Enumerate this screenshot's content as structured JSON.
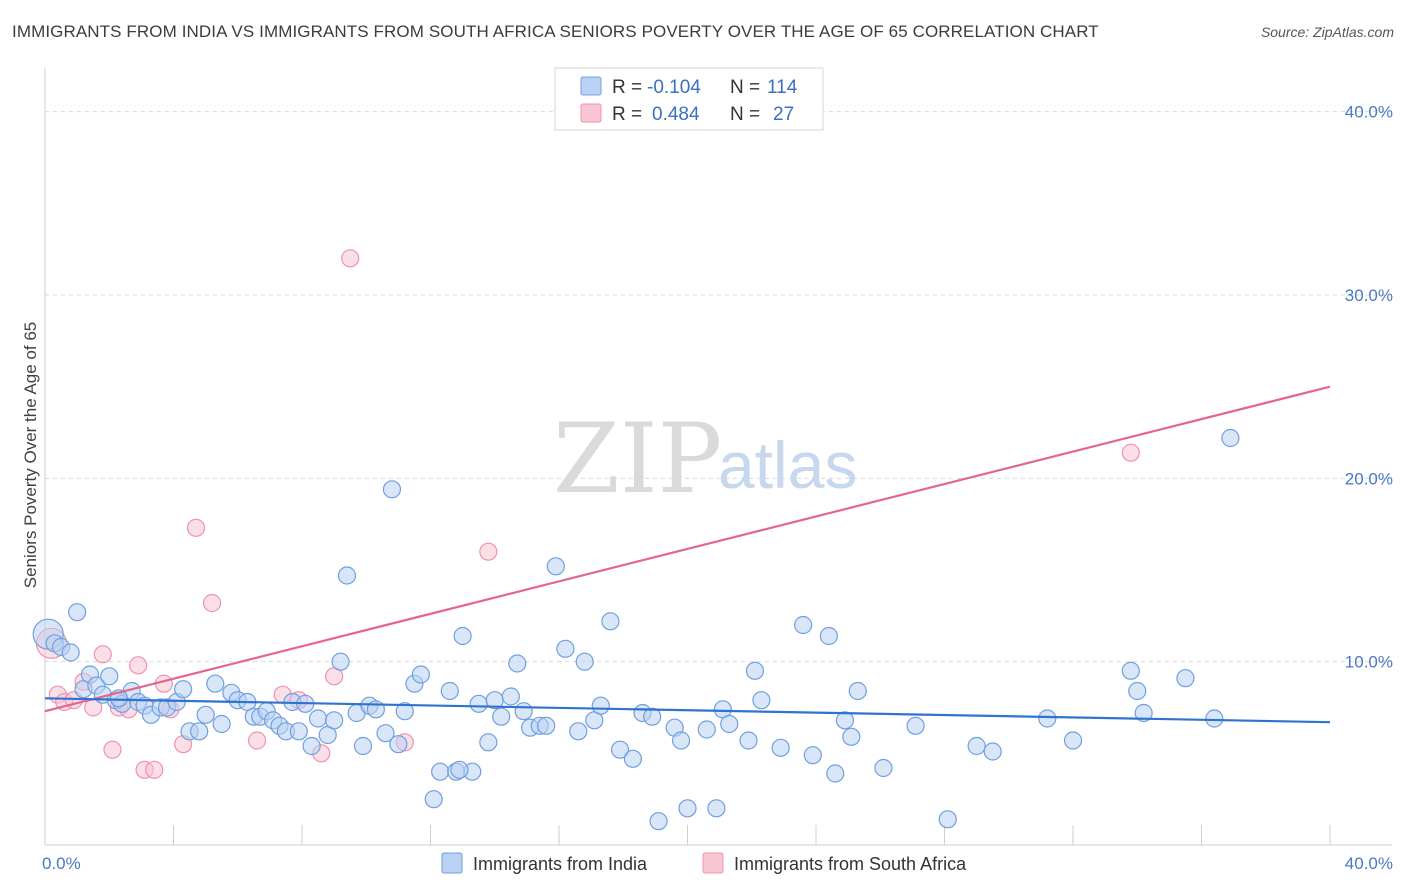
{
  "title": "IMMIGRANTS FROM INDIA VS IMMIGRANTS FROM SOUTH AFRICA SENIORS POVERTY OVER THE AGE OF 65 CORRELATION CHART",
  "source": "Source: ZipAtlas.com",
  "watermark": {
    "zip": "ZIP",
    "atlas": "atlas"
  },
  "legend": {
    "rows": [
      {
        "r_label": "R = ",
        "r_value": "-0.104",
        "n_label": "N = ",
        "n_value": "114"
      },
      {
        "r_label": "R = ",
        "r_value": "0.484",
        "n_label": "N = ",
        "n_value": "27"
      }
    ]
  },
  "colors": {
    "india_fill": "#b9d1f2",
    "india_stroke": "#6f9fe0",
    "india_line": "#2f73d0",
    "sa_fill": "#f8c5d3",
    "sa_stroke": "#ee93ae",
    "sa_line": "#e4668e",
    "grid": "#d9d9d9",
    "tick_text": "#4a78c2"
  },
  "chart_data": {
    "type": "scatter",
    "title": "IMMIGRANTS FROM INDIA VS IMMIGRANTS FROM SOUTH AFRICA SENIORS POVERTY OVER THE AGE OF 65 CORRELATION CHART",
    "xlabel": "",
    "ylabel": "Seniors Poverty Over the Age of 65",
    "xlim": [
      0,
      40
    ],
    "ylim": [
      0,
      42
    ],
    "x_tick_labels": [
      "0.0%",
      "40.0%"
    ],
    "y_ticks": [
      10,
      20,
      30,
      40
    ],
    "y_tick_labels": [
      "10.0%",
      "20.0%",
      "30.0%",
      "40.0%"
    ],
    "grid": true,
    "legend_position": "top-center",
    "series": [
      {
        "name": "Immigrants from India",
        "r": -0.104,
        "n": 114,
        "trend": {
          "x": [
            0,
            40
          ],
          "y": [
            8.0,
            6.7
          ]
        },
        "points": [
          [
            0.1,
            11.5
          ],
          [
            0.3,
            11.0
          ],
          [
            0.5,
            10.8
          ],
          [
            0.8,
            10.5
          ],
          [
            1.0,
            12.7
          ],
          [
            1.2,
            8.5
          ],
          [
            1.4,
            9.3
          ],
          [
            1.6,
            8.7
          ],
          [
            1.8,
            8.2
          ],
          [
            2.0,
            9.2
          ],
          [
            2.2,
            7.9
          ],
          [
            2.4,
            7.7
          ],
          [
            2.7,
            8.4
          ],
          [
            2.9,
            7.8
          ],
          [
            3.1,
            7.6
          ],
          [
            3.3,
            7.1
          ],
          [
            3.6,
            7.5
          ],
          [
            3.8,
            7.5
          ],
          [
            4.1,
            7.8
          ],
          [
            4.3,
            8.5
          ],
          [
            4.5,
            6.2
          ],
          [
            4.8,
            6.2
          ],
          [
            5.0,
            7.1
          ],
          [
            5.3,
            8.8
          ],
          [
            5.5,
            6.6
          ],
          [
            5.8,
            8.3
          ],
          [
            6.0,
            7.9
          ],
          [
            6.3,
            7.8
          ],
          [
            6.5,
            7.0
          ],
          [
            6.7,
            7.0
          ],
          [
            6.9,
            7.3
          ],
          [
            7.1,
            6.8
          ],
          [
            7.3,
            6.5
          ],
          [
            7.5,
            6.2
          ],
          [
            7.7,
            7.8
          ],
          [
            7.9,
            6.2
          ],
          [
            8.1,
            7.7
          ],
          [
            8.3,
            5.4
          ],
          [
            8.5,
            6.9
          ],
          [
            8.8,
            6.0
          ],
          [
            9.0,
            6.8
          ],
          [
            9.2,
            10.0
          ],
          [
            9.4,
            14.7
          ],
          [
            9.7,
            7.2
          ],
          [
            9.9,
            5.4
          ],
          [
            10.1,
            7.6
          ],
          [
            10.3,
            7.4
          ],
          [
            10.6,
            6.1
          ],
          [
            10.8,
            19.4
          ],
          [
            11.0,
            5.5
          ],
          [
            11.2,
            7.3
          ],
          [
            11.5,
            8.8
          ],
          [
            11.7,
            9.3
          ],
          [
            12.1,
            2.5
          ],
          [
            12.3,
            4.0
          ],
          [
            12.6,
            8.4
          ],
          [
            12.8,
            4.0
          ],
          [
            13.0,
            11.4
          ],
          [
            13.3,
            4.0
          ],
          [
            13.5,
            7.7
          ],
          [
            13.8,
            5.6
          ],
          [
            14.0,
            7.9
          ],
          [
            14.2,
            7.0
          ],
          [
            14.5,
            8.1
          ],
          [
            14.7,
            9.9
          ],
          [
            14.9,
            7.3
          ],
          [
            15.1,
            6.4
          ],
          [
            15.4,
            6.5
          ],
          [
            15.6,
            6.5
          ],
          [
            15.9,
            15.2
          ],
          [
            16.2,
            10.7
          ],
          [
            16.6,
            6.2
          ],
          [
            16.8,
            10.0
          ],
          [
            17.1,
            6.8
          ],
          [
            17.3,
            7.6
          ],
          [
            17.6,
            12.2
          ],
          [
            17.9,
            5.2
          ],
          [
            18.3,
            4.7
          ],
          [
            18.6,
            7.2
          ],
          [
            18.9,
            7.0
          ],
          [
            19.1,
            1.3
          ],
          [
            19.6,
            6.4
          ],
          [
            19.8,
            5.7
          ],
          [
            20.0,
            2.0
          ],
          [
            20.6,
            6.3
          ],
          [
            20.9,
            2.0
          ],
          [
            21.1,
            7.4
          ],
          [
            21.3,
            6.6
          ],
          [
            21.9,
            5.7
          ],
          [
            22.1,
            9.5
          ],
          [
            22.3,
            7.9
          ],
          [
            22.9,
            5.3
          ],
          [
            23.6,
            12.0
          ],
          [
            23.9,
            4.9
          ],
          [
            24.4,
            11.4
          ],
          [
            24.6,
            3.9
          ],
          [
            24.9,
            6.8
          ],
          [
            25.1,
            5.9
          ],
          [
            25.3,
            8.4
          ],
          [
            26.1,
            4.2
          ],
          [
            27.1,
            6.5
          ],
          [
            28.1,
            1.4
          ],
          [
            29.0,
            5.4
          ],
          [
            29.5,
            5.1
          ],
          [
            31.2,
            6.9
          ],
          [
            32.0,
            5.7
          ],
          [
            33.8,
            9.5
          ],
          [
            34.0,
            8.4
          ],
          [
            34.2,
            7.2
          ],
          [
            35.5,
            9.1
          ],
          [
            36.4,
            6.9
          ],
          [
            36.9,
            22.2
          ],
          [
            2.3,
            8.0
          ],
          [
            12.9,
            4.1
          ]
        ]
      },
      {
        "name": "Immigrants from South Africa",
        "r": 0.484,
        "n": 27,
        "trend": {
          "x": [
            0,
            40
          ],
          "y": [
            7.3,
            25.0
          ]
        },
        "points": [
          [
            0.2,
            11.0
          ],
          [
            0.4,
            8.2
          ],
          [
            0.6,
            7.8
          ],
          [
            0.9,
            7.9
          ],
          [
            1.2,
            8.9
          ],
          [
            1.5,
            7.5
          ],
          [
            1.8,
            10.4
          ],
          [
            2.1,
            5.2
          ],
          [
            2.3,
            7.5
          ],
          [
            2.6,
            7.4
          ],
          [
            2.9,
            9.8
          ],
          [
            3.1,
            4.1
          ],
          [
            3.4,
            4.1
          ],
          [
            3.7,
            8.8
          ],
          [
            3.9,
            7.4
          ],
          [
            4.3,
            5.5
          ],
          [
            4.7,
            17.3
          ],
          [
            5.2,
            13.2
          ],
          [
            6.6,
            5.7
          ],
          [
            7.4,
            8.2
          ],
          [
            7.9,
            7.9
          ],
          [
            8.6,
            5.0
          ],
          [
            9.0,
            9.2
          ],
          [
            9.5,
            32.0
          ],
          [
            11.2,
            5.6
          ],
          [
            13.8,
            16.0
          ],
          [
            33.8,
            21.4
          ]
        ]
      }
    ]
  },
  "bottom_legend": [
    "Immigrants from India",
    "Immigrants from South Africa"
  ]
}
